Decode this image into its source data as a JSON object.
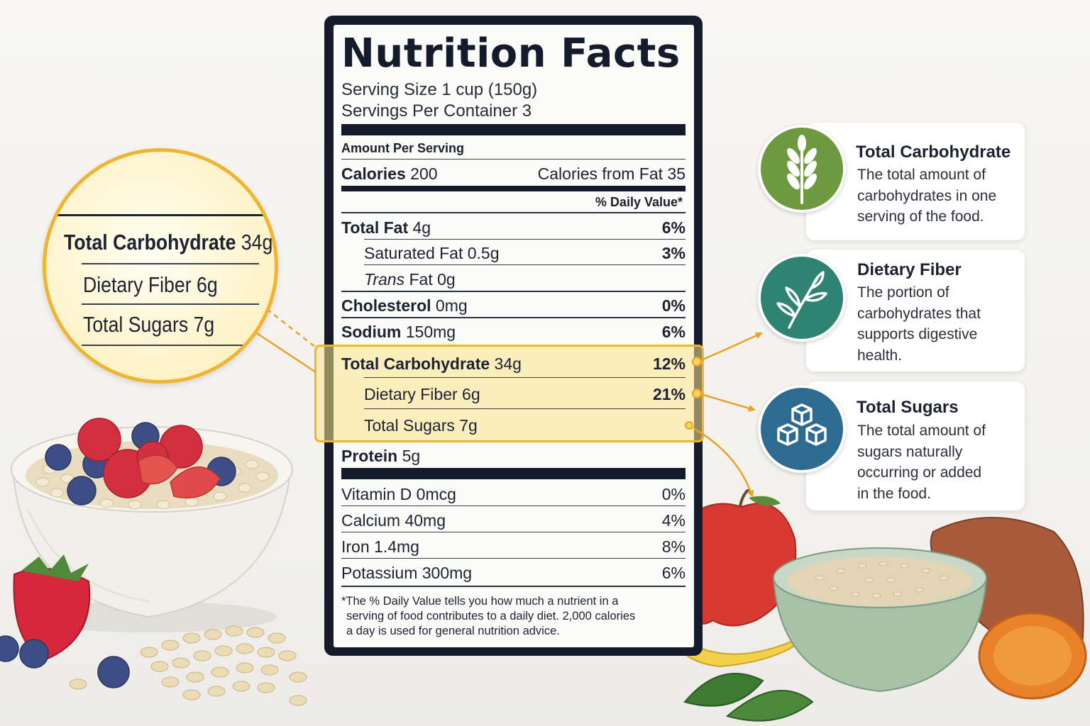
{
  "label": {
    "title": "Nutrition Facts",
    "serving_size": "Serving Size 1 cup (150g)",
    "servings_per_container": "Servings Per Container 3",
    "amount_per_serving": "Amount Per Serving",
    "calories_label": "Calories",
    "calories_value": "200",
    "calories_from_fat": "Calories from Fat 35",
    "daily_value_header": "% Daily Value*",
    "rows": {
      "total_fat": {
        "label": "Total Fat",
        "amount": "4g",
        "dv": "6%"
      },
      "saturated_fat": {
        "label": "Saturated Fat 0.5g",
        "dv": "3%"
      },
      "trans_fat": {
        "label_italic": "Trans",
        "label_rest": "Fat 0g"
      },
      "cholesterol": {
        "label": "Cholesterol",
        "amount": "0mg",
        "dv": "0%"
      },
      "sodium": {
        "label": "Sodium",
        "amount": "150mg",
        "dv": "6%"
      },
      "total_carbohydrate": {
        "label": "Total Carbohydrate",
        "amount": "34g",
        "dv": "12%"
      },
      "dietary_fiber": {
        "label": "Dietary Fiber 6g",
        "dv": "21%"
      },
      "total_sugars": {
        "label": "Total Sugars 7g"
      },
      "protein": {
        "label": "Protein",
        "amount": "5g"
      },
      "vitamin_d": {
        "label": "Vitamin D 0mcg",
        "dv": "0%"
      },
      "calcium": {
        "label": "Calcium 40mg",
        "dv": "4%"
      },
      "iron": {
        "label": "Iron 1.4mg",
        "dv": "8%"
      },
      "potassium": {
        "label": "Potassium 300mg",
        "dv": "6%"
      }
    },
    "footnote": [
      "*The % Daily Value tells you how much a nutrient in a",
      "serving of food contributes to a daily diet. 2,000 calories",
      "a day is used for general nutrition advice."
    ]
  },
  "magnifier": {
    "carb_label": "Total Carbohydrate",
    "carb_amount": "34g",
    "fiber": "Dietary Fiber 6g",
    "sugars": "Total Sugars 7g"
  },
  "cards": [
    {
      "title": "Total Carbohydrate",
      "icon": "wheat-icon",
      "color": "#6e9a3f",
      "lines": [
        "The total amount of",
        "carbohydrates in one",
        "serving of the food."
      ]
    },
    {
      "title": "Dietary Fiber",
      "icon": "leaf-sprig-icon",
      "color": "#2e8372",
      "lines": [
        "The portion of",
        "carbohydrates that",
        "supports digestive",
        "health."
      ]
    },
    {
      "title": "Total Sugars",
      "icon": "sugar-cubes-icon",
      "color": "#2d6b92",
      "lines": [
        "The total amount of",
        "sugars naturally",
        "occurring or added",
        "in the food."
      ]
    }
  ],
  "colors": {
    "label_border": "#141b2b",
    "highlight": "#fce48a",
    "highlight_border": "#f2b42c",
    "connector": "#eda123"
  }
}
